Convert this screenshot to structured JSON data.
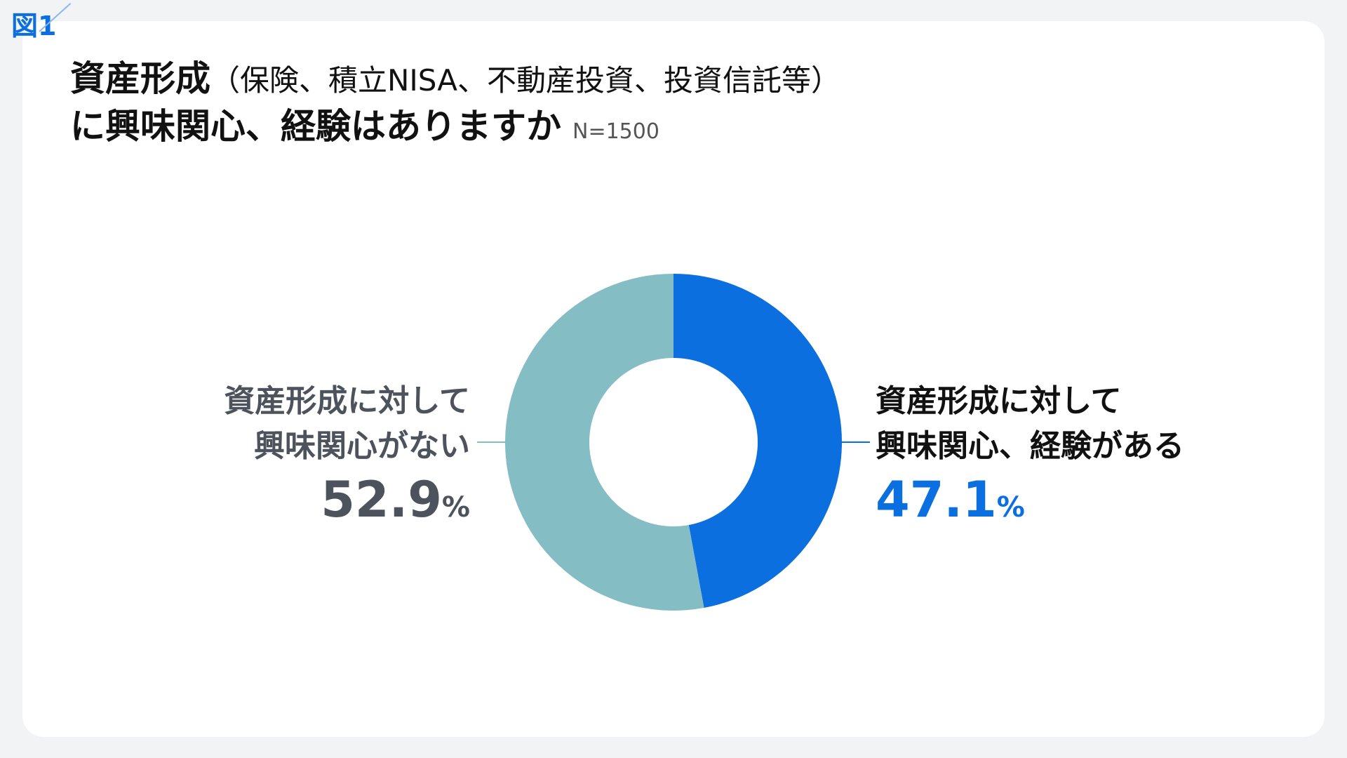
{
  "figure_tag": "図1",
  "title": {
    "line1_main": "資産形成",
    "line1_paren": "（保険、積立NISA、不動産投資、投資信託等）",
    "line2_main": "に興味関心、経験はありますか",
    "n_label": "N=1500"
  },
  "colors": {
    "has_interest": "#0b6fe0",
    "no_interest": "#85bdc4",
    "figure_tag": "#0b6fe0"
  },
  "chart_data": {
    "type": "pie",
    "donut": true,
    "slices": [
      {
        "label_line1": "資産形成に対して",
        "label_line2": "興味関心、経験がある",
        "value": 47.1,
        "value_text": "47.1",
        "unit": "%",
        "color": "#0b6fe0"
      },
      {
        "label_line1": "資産形成に対して",
        "label_line2": "興味関心がない",
        "value": 52.9,
        "value_text": "52.9",
        "unit": "%",
        "color": "#85bdc4"
      }
    ]
  }
}
